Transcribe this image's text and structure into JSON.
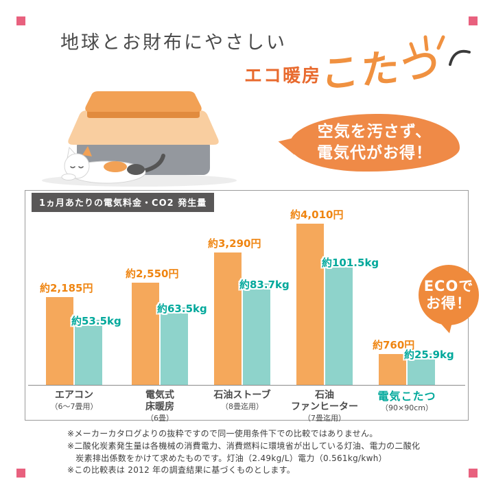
{
  "header": {
    "title": "地球とお財布にやさしい",
    "subtitle_prefix": "エコ暖房",
    "subtitle_main": "こたつ"
  },
  "bubble": {
    "line1": "空気を汚さず、",
    "line2": "電気代がお得！"
  },
  "eco_badge": {
    "line1": "ECOで",
    "line2": "お得！"
  },
  "chart_data": {
    "type": "bar",
    "title": "1ヵ月あたりの電気料金・CO2 発生量",
    "categories": [
      {
        "main_lines": [
          "エアコン"
        ],
        "sub": "（6〜7畳用）",
        "highlight": false
      },
      {
        "main_lines": [
          "電気式",
          "床暖房"
        ],
        "sub": "（6畳）",
        "highlight": false
      },
      {
        "main_lines": [
          "石油ストーブ"
        ],
        "sub": "（8畳迄用）",
        "highlight": false
      },
      {
        "main_lines": [
          "石油",
          "ファンヒーター"
        ],
        "sub": "（7畳迄用）",
        "highlight": false
      },
      {
        "main_lines": [
          "電気こたつ"
        ],
        "sub": "（90×90cm）",
        "highlight": true
      }
    ],
    "series": [
      {
        "name": "電気料金",
        "unit": "円",
        "color": "#F5A85B",
        "label_color": "#EF8511",
        "values": [
          2185,
          2550,
          3290,
          4010,
          760
        ],
        "labels": [
          "約2,185円",
          "約2,550円",
          "約3,290円",
          "約4,010円",
          "約760円"
        ]
      },
      {
        "name": "CO2発生量",
        "unit": "kg",
        "color": "#8ED3CB",
        "label_color": "#00A89B",
        "values": [
          53.5,
          63.5,
          83.7,
          101.5,
          25.9
        ],
        "labels": [
          "約53.5kg",
          "約63.5kg",
          "約83.7kg",
          "約101.5kg",
          "約25.9kg"
        ]
      }
    ],
    "grid": false,
    "legend": "none",
    "axis_line": true
  },
  "footnotes": [
    "※メーカーカタログよりの抜粋ですので同一使用条件下での比較ではありません。",
    "※二酸化炭素発生量は各機械の消費電力、消費燃料に環境省が出している灯油、電力の二酸化",
    "　炭素排出係数をかけて求めたものです。灯油（2.49kg/L）電力（0.561kg/kwh）",
    "※この比較表は 2012 年の調査結果に基づくものとします。"
  ],
  "colors": {
    "accent_orange": "#EF8A47",
    "price_bar": "#F5A85B",
    "co2_bar": "#8ED3CB",
    "co2_text": "#00A89B",
    "header_box": "#595757",
    "corner_pink": "#E8617E"
  }
}
